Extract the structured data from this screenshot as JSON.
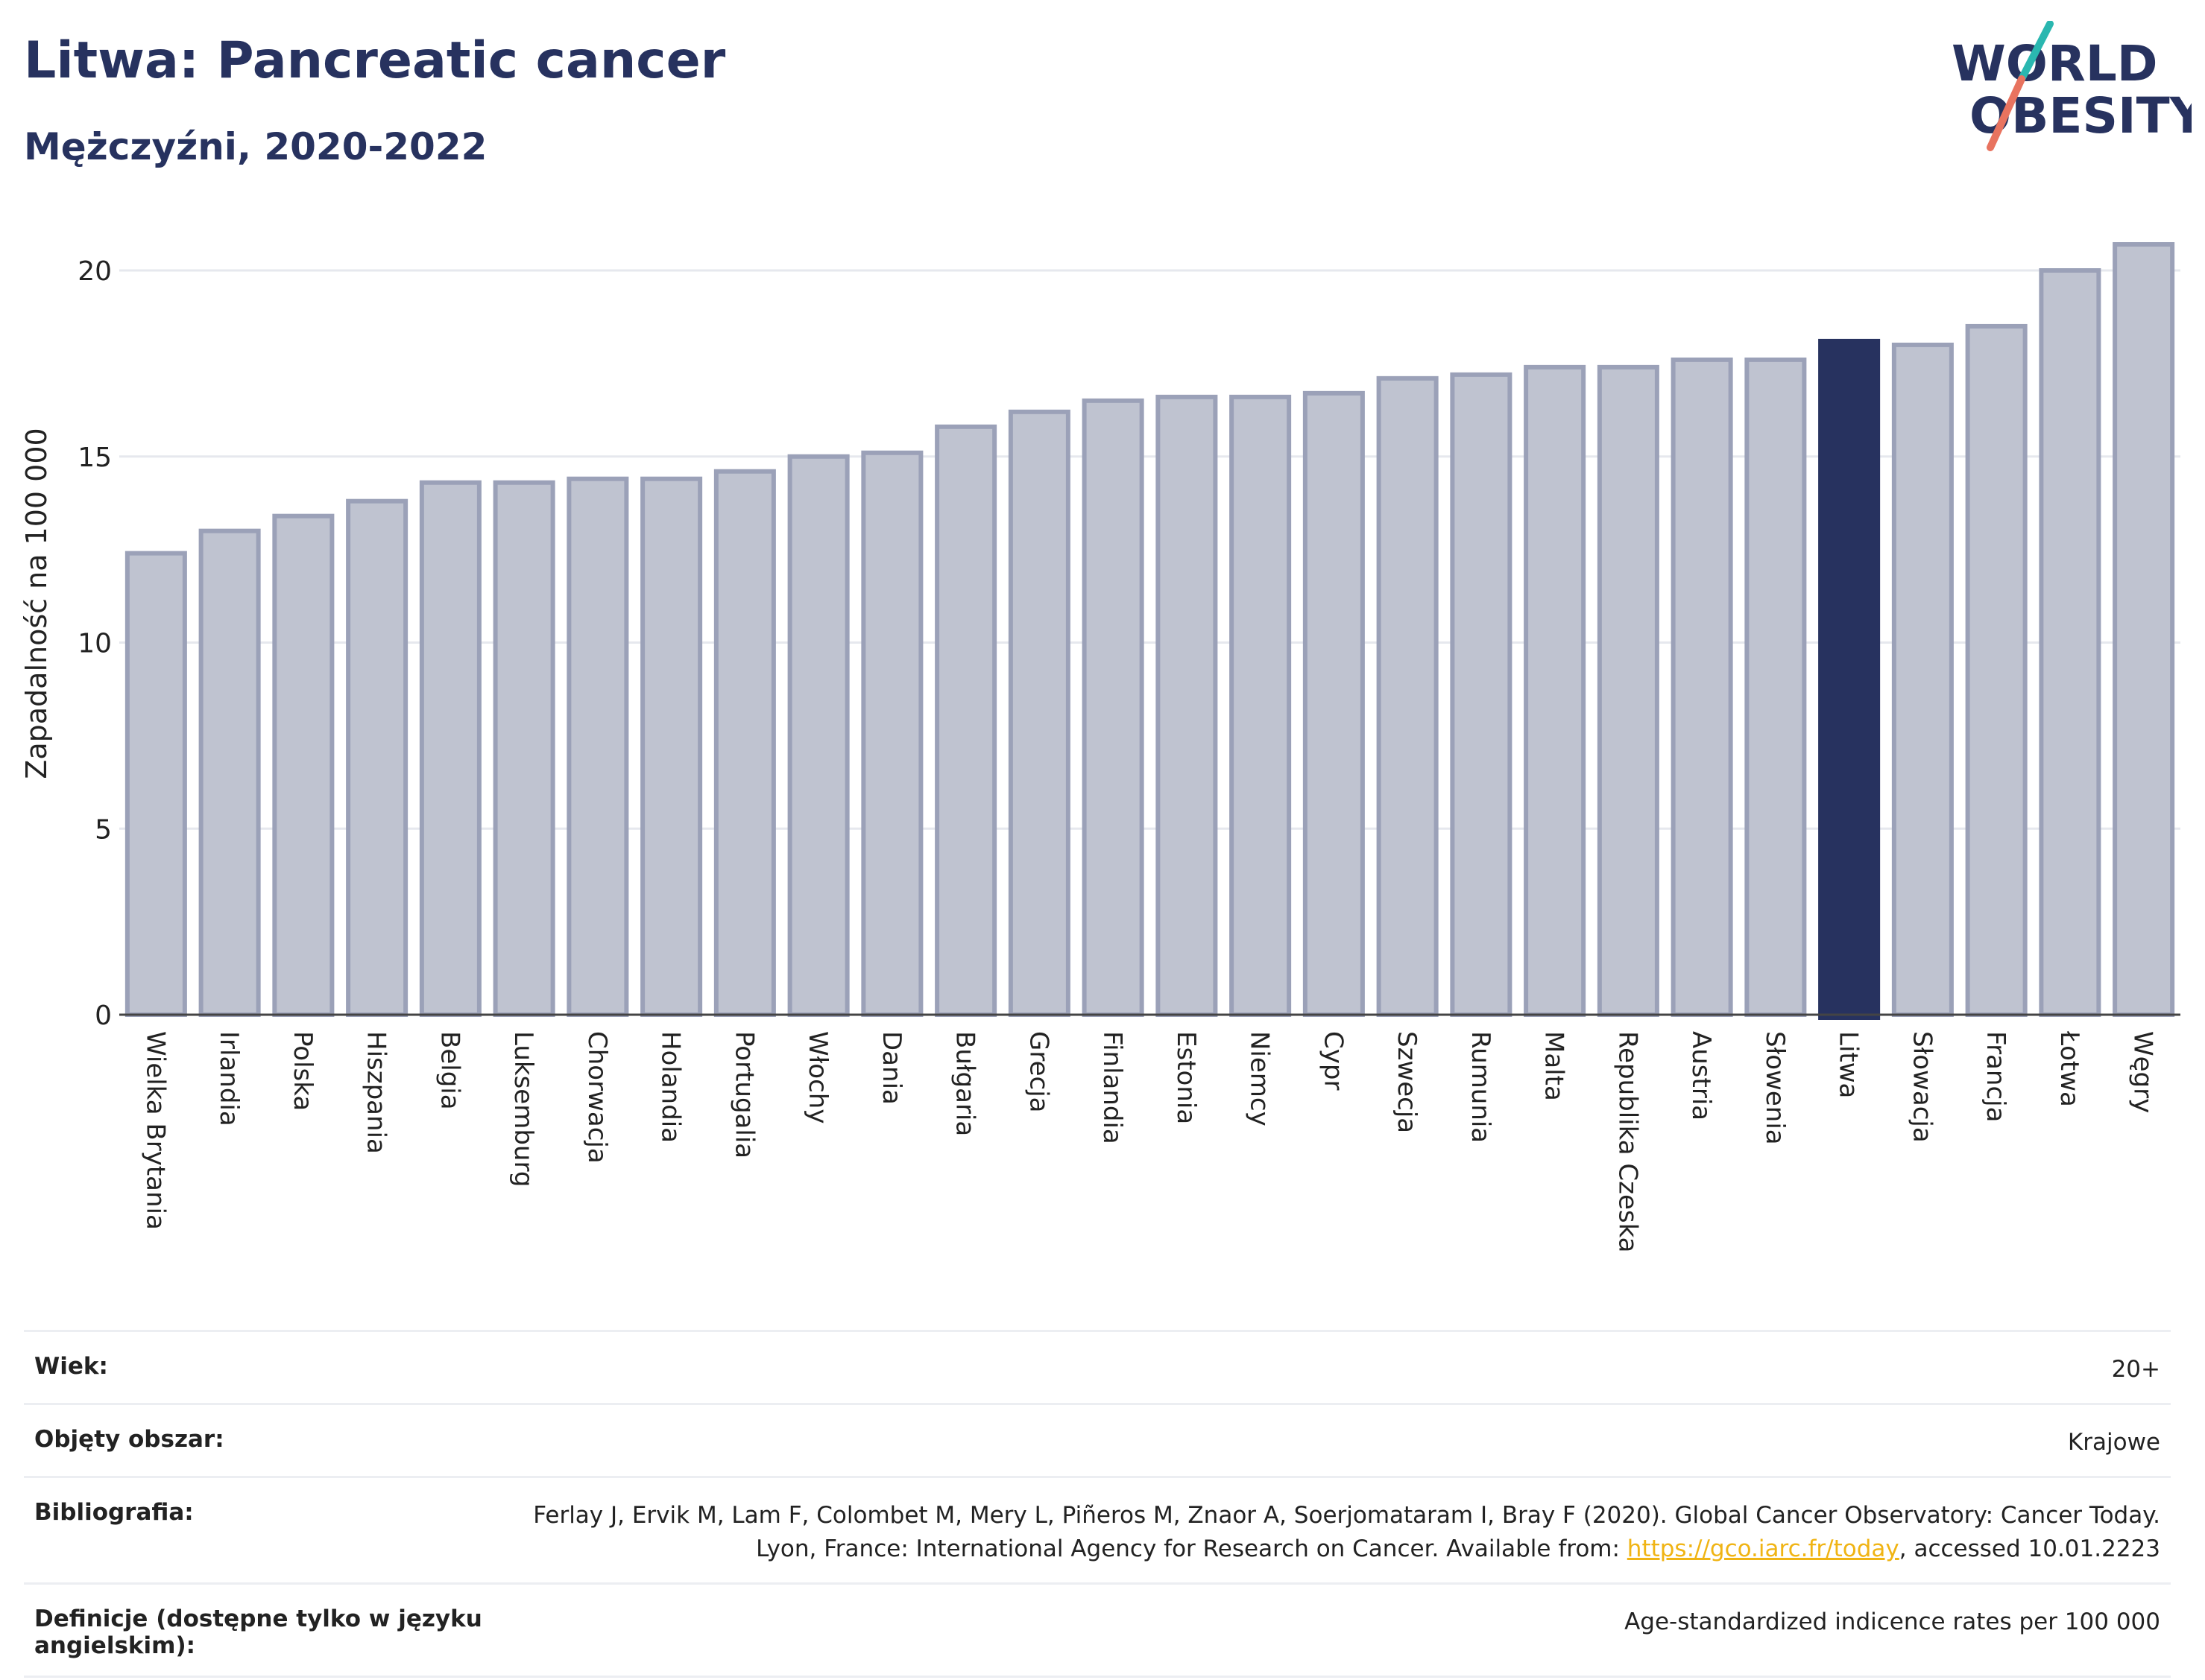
{
  "header": {
    "title": "Litwa: Pancreatic cancer",
    "subtitle": "Mężczyźni, 2020-2022",
    "logo_line1": "WORLD",
    "logo_line2": "OBESITY"
  },
  "colors": {
    "bar": "#bfc3d0",
    "bar_border": "#9ba1b8",
    "highlight": "#27325f",
    "accent_teal": "#2ab7b0",
    "accent_coral": "#e8735f"
  },
  "chart_data": {
    "type": "bar",
    "title": "Litwa: Pancreatic cancer",
    "subtitle": "Mężczyźni, 2020-2022",
    "ylabel": "Zapadalność na 100 000",
    "xlabel": "",
    "ylim": [
      0,
      21
    ],
    "yticks": [
      0,
      5,
      10,
      15,
      20
    ],
    "grid": true,
    "highlight": "Litwa",
    "categories": [
      "Wielka Brytania",
      "Irlandia",
      "Polska",
      "Hiszpania",
      "Belgia",
      "Luksemburg",
      "Chorwacja",
      "Holandia",
      "Portugalia",
      "Włochy",
      "Dania",
      "Bułgaria",
      "Grecja",
      "Finlandia",
      "Estonia",
      "Niemcy",
      "Cypr",
      "Szwecja",
      "Rumunia",
      "Malta",
      "Republika Czeska",
      "Austria",
      "Słowenia",
      "Litwa",
      "Słowacja",
      "Francja",
      "Łotwa",
      "Węgry"
    ],
    "values": [
      12.4,
      13.0,
      13.4,
      13.8,
      14.3,
      14.3,
      14.4,
      14.4,
      14.6,
      15.0,
      15.1,
      15.8,
      16.2,
      16.5,
      16.6,
      16.6,
      16.7,
      17.1,
      17.2,
      17.4,
      17.4,
      17.6,
      17.6,
      18.1,
      18.0,
      18.5,
      20.0,
      20.7
    ]
  },
  "meta": {
    "rows": [
      {
        "label": "Wiek:",
        "value": "20+"
      },
      {
        "label": "Objęty obszar:",
        "value": "Krajowe"
      },
      {
        "label": "Bibliografia:",
        "value_before": "Ferlay J, Ervik M, Lam F, Colombet M, Mery L, Piñeros M, Znaor A, Soerjomataram I, Bray F (2020). Global Cancer Observatory: Cancer Today. Lyon, France: International Agency for Research on Cancer. Available from: ",
        "link": "https://gco.iarc.fr/today",
        "value_after": ", accessed 10.01.2223"
      },
      {
        "label": "Definicje (dostępne tylko w języku angielskim):",
        "value": "Age-standardized indicence rates per 100 000"
      }
    ]
  }
}
